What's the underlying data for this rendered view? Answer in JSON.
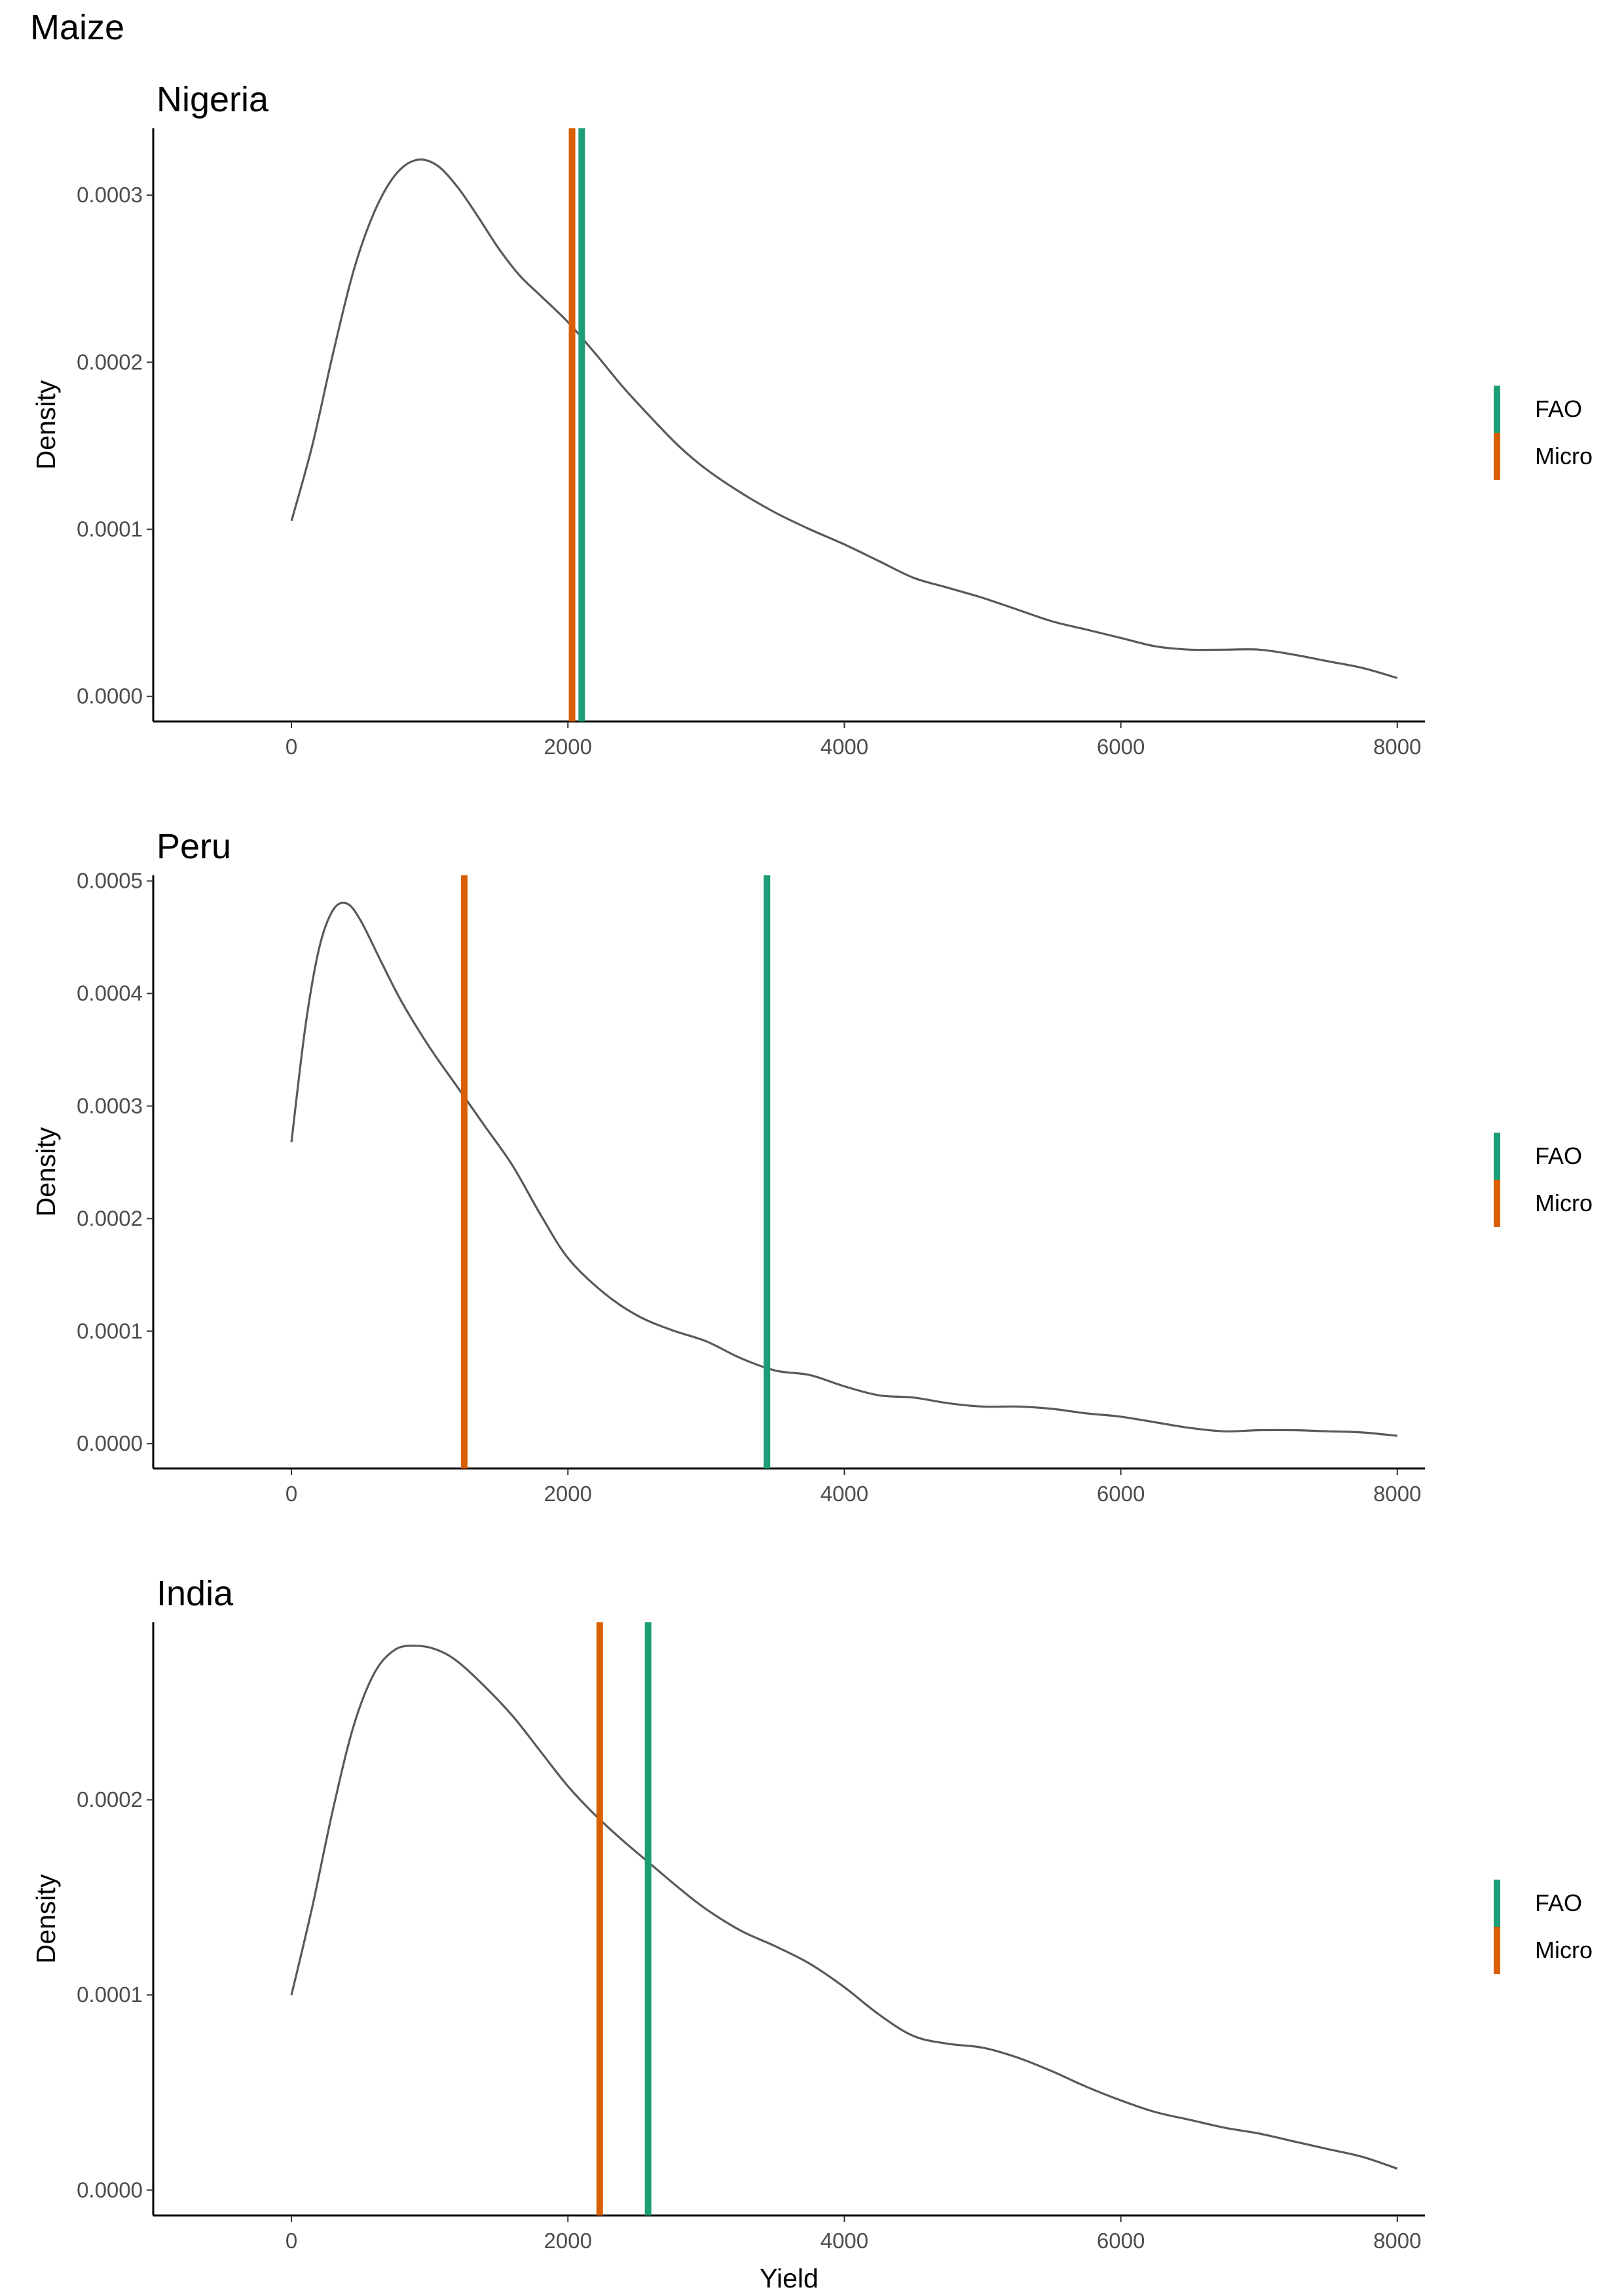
{
  "figure": {
    "title": "Maize",
    "xlabel": "Yield",
    "ylabel": "Density"
  },
  "legend": {
    "items": [
      {
        "label": "FAO",
        "color": "#1b9e77"
      },
      {
        "label": "Micro",
        "color": "#d95f02"
      }
    ]
  },
  "colors": {
    "density_line": "#595959",
    "axis": "#000000",
    "tick_label": "#4d4d4d"
  },
  "chart_data": [
    {
      "type": "line",
      "title": "Nigeria",
      "xlabel": "",
      "ylabel": "Density",
      "xlim": [
        -1000,
        8200
      ],
      "ylim": [
        -1.5e-05,
        0.00034
      ],
      "x_ticks": [
        0,
        2000,
        4000,
        6000,
        8000
      ],
      "x_tick_labels": [
        "0",
        "2000",
        "4000",
        "6000",
        "8000"
      ],
      "y_ticks": [
        0.0,
        0.0001,
        0.0002,
        0.0003
      ],
      "y_tick_labels": [
        "0.0000",
        "0.0001",
        "0.0002",
        "0.0003"
      ],
      "series": [
        {
          "name": "density",
          "x": [
            0,
            150,
            300,
            450,
            600,
            750,
            900,
            1050,
            1200,
            1350,
            1500,
            1650,
            1800,
            2000,
            2200,
            2400,
            2600,
            2800,
            3000,
            3250,
            3500,
            3750,
            4000,
            4250,
            4500,
            4750,
            5000,
            5250,
            5500,
            5750,
            6000,
            6250,
            6500,
            6750,
            7000,
            7250,
            7500,
            7750,
            8000
          ],
          "y": [
            0.000105,
            0.00015,
            0.000205,
            0.000255,
            0.00029,
            0.000312,
            0.000321,
            0.000318,
            0.000305,
            0.000287,
            0.000268,
            0.000252,
            0.00024,
            0.000224,
            0.000205,
            0.000185,
            0.000167,
            0.00015,
            0.000136,
            0.000122,
            0.00011,
            0.0001,
            9.1e-05,
            8.1e-05,
            7.1e-05,
            6.5e-05,
            5.9e-05,
            5.2e-05,
            4.5e-05,
            4e-05,
            3.5e-05,
            3e-05,
            2.8e-05,
            2.8e-05,
            2.8e-05,
            2.5e-05,
            2.1e-05,
            1.7e-05,
            1.1e-05
          ]
        }
      ],
      "vlines": [
        {
          "name": "FAO",
          "x": 2100
        },
        {
          "name": "Micro",
          "x": 2030
        }
      ]
    },
    {
      "type": "line",
      "title": "Peru",
      "xlabel": "",
      "ylabel": "Density",
      "xlim": [
        -1000,
        8200
      ],
      "ylim": [
        -2.2e-05,
        0.000505
      ],
      "x_ticks": [
        0,
        2000,
        4000,
        6000,
        8000
      ],
      "x_tick_labels": [
        "0",
        "2000",
        "4000",
        "6000",
        "8000"
      ],
      "y_ticks": [
        0.0,
        0.0001,
        0.0002,
        0.0003,
        0.0004,
        0.0005
      ],
      "y_tick_labels": [
        "0.0000",
        "0.0001",
        "0.0002",
        "0.0003",
        "0.0004",
        "0.0005"
      ],
      "series": [
        {
          "name": "density",
          "x": [
            0,
            100,
            200,
            300,
            400,
            500,
            650,
            800,
            1000,
            1200,
            1400,
            1600,
            1800,
            2000,
            2250,
            2500,
            2750,
            3000,
            3250,
            3500,
            3750,
            4000,
            4250,
            4500,
            4750,
            5000,
            5250,
            5500,
            5750,
            6000,
            6250,
            6500,
            6750,
            7000,
            7250,
            7500,
            7750,
            8000
          ],
          "y": [
            0.000268,
            0.00037,
            0.00044,
            0.000474,
            0.00048,
            0.000465,
            0.000428,
            0.000392,
            0.000352,
            0.000317,
            0.000282,
            0.000247,
            0.000204,
            0.000165,
            0.000135,
            0.000114,
            0.000101,
            9.1e-05,
            7.6e-05,
            6.5e-05,
            6.1e-05,
            5.1e-05,
            4.3e-05,
            4.1e-05,
            3.6e-05,
            3.3e-05,
            3.3e-05,
            3.1e-05,
            2.7e-05,
            2.4e-05,
            1.9e-05,
            1.4e-05,
            1.1e-05,
            1.2e-05,
            1.2e-05,
            1.1e-05,
            1e-05,
            7e-06
          ]
        }
      ],
      "vlines": [
        {
          "name": "FAO",
          "x": 3440
        },
        {
          "name": "Micro",
          "x": 1250
        }
      ]
    },
    {
      "type": "line",
      "title": "India",
      "xlabel": "Yield",
      "ylabel": "Density",
      "xlim": [
        -1000,
        8200
      ],
      "ylim": [
        -1.3e-05,
        0.000291
      ],
      "x_ticks": [
        0,
        2000,
        4000,
        6000,
        8000
      ],
      "x_tick_labels": [
        "0",
        "2000",
        "4000",
        "6000",
        "8000"
      ],
      "y_ticks": [
        0.0,
        0.0001,
        0.0002
      ],
      "y_tick_labels": [
        "0.0000",
        "0.0001",
        "0.0002"
      ],
      "series": [
        {
          "name": "density",
          "x": [
            0,
            150,
            300,
            450,
            600,
            750,
            900,
            1050,
            1200,
            1400,
            1600,
            1800,
            2000,
            2200,
            2400,
            2600,
            2800,
            3000,
            3250,
            3500,
            3750,
            4000,
            4250,
            4500,
            4750,
            5000,
            5250,
            5500,
            5750,
            6000,
            6250,
            6500,
            6750,
            7000,
            7250,
            7500,
            7750,
            8000
          ],
          "y": [
            0.0001,
            0.000145,
            0.000195,
            0.000238,
            0.000265,
            0.000277,
            0.000279,
            0.000277,
            0.000271,
            0.000258,
            0.000243,
            0.000225,
            0.000207,
            0.000192,
            0.000179,
            0.000167,
            0.000155,
            0.000144,
            0.000133,
            0.000125,
            0.000116,
            0.000104,
            9e-05,
            7.9e-05,
            7.5e-05,
            7.3e-05,
            6.8e-05,
            6.1e-05,
            5.3e-05,
            4.6e-05,
            4e-05,
            3.6e-05,
            3.2e-05,
            2.9e-05,
            2.5e-05,
            2.1e-05,
            1.7e-05,
            1.1e-05
          ]
        }
      ],
      "vlines": [
        {
          "name": "FAO",
          "x": 2580
        },
        {
          "name": "Micro",
          "x": 2230
        }
      ]
    }
  ]
}
